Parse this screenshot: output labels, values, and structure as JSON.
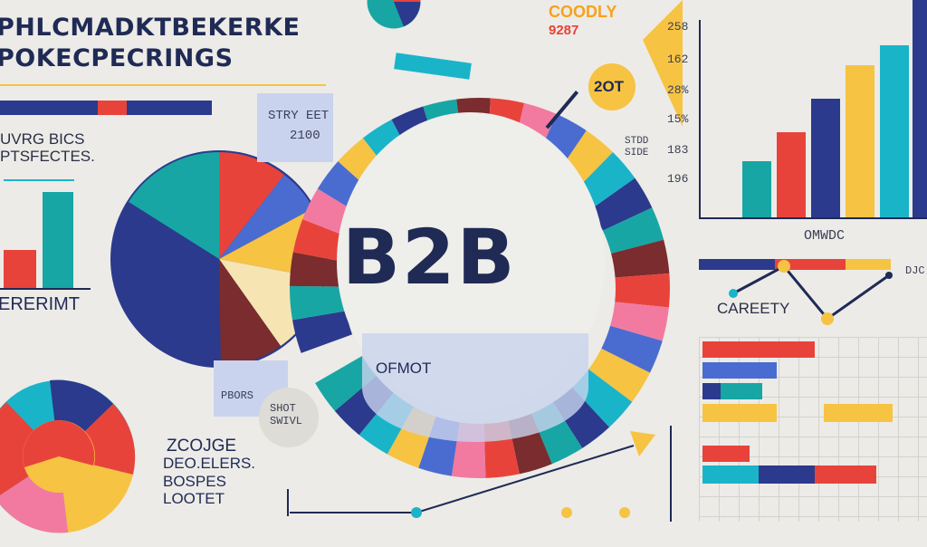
{
  "header": {
    "title_line1": "PHLCMADKTBEKERKE",
    "title_line2": "POKECPECRINGS"
  },
  "labels": {
    "left_top_1": "UVRG BICS",
    "left_top_2": "PTSFECTES.",
    "left_mid": "ERERIMT",
    "left_bottom_1": "ZCOJGE",
    "left_bottom_2": "DEO.ELERS.",
    "left_bottom_3": "BOSPES",
    "left_bottom_4": "LOOTET",
    "card_1": "STRY EET",
    "card_2": "2100",
    "pbors": "PBORS",
    "shot_1": "SHOT",
    "shot_2": "SWIVL",
    "center": "B2B",
    "ofmot": "OFMOT",
    "coodly": "COODLY",
    "coodly_num": "9287",
    "bubble": "2OT",
    "stdd_1": "STDD",
    "stdd_2": "SIDE",
    "omwdc": "OMWDC",
    "careety": "CAREETY",
    "djc": "DJC"
  },
  "right_axis_ticks": [
    "258",
    "162",
    "28%",
    "15%",
    "183",
    "196"
  ],
  "colors": {
    "navy": "#2b3a8c",
    "red": "#e8433b",
    "teal": "#17a6a4",
    "yellow": "#f7c342",
    "cyan": "#1ab4c9",
    "maroon": "#7a2c2e",
    "pink": "#f27aa0",
    "lightblue": "#c9d3ee",
    "cream": "#f6e4b3",
    "dark": "#1f2a55"
  }
}
